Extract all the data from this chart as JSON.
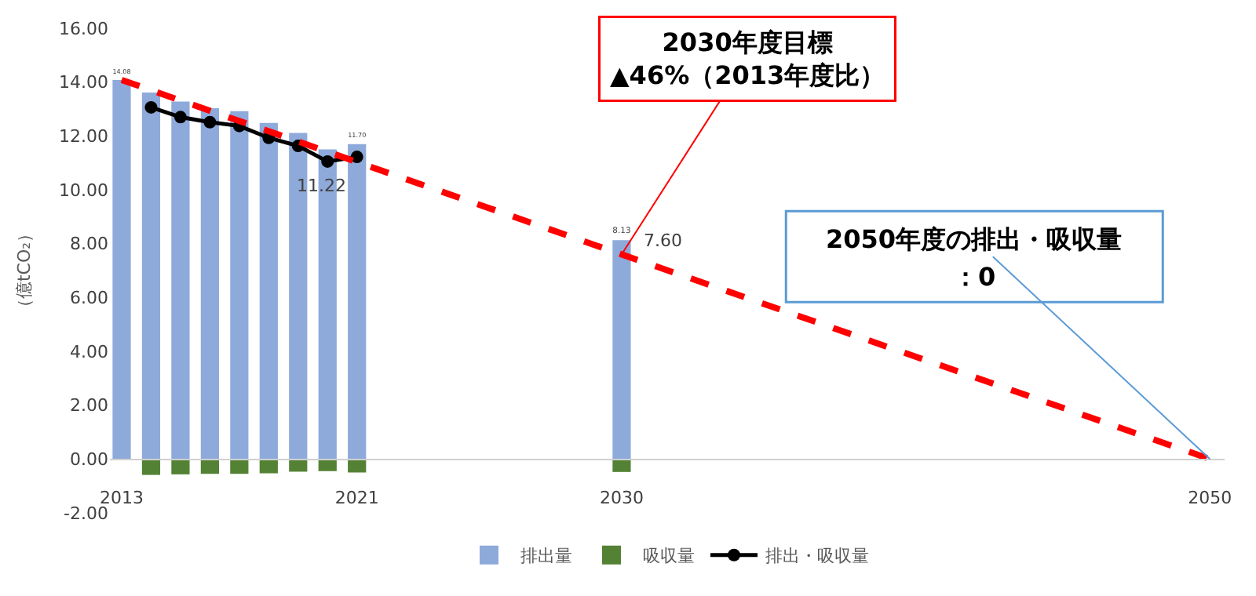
{
  "chart_data": {
    "type": "bar",
    "ylabel": "（億tCO₂）",
    "xlim": [
      2012.6,
      2050.5
    ],
    "xticks": [
      2013,
      2021,
      2030,
      2050
    ],
    "ylim": [
      -2,
      16
    ],
    "yticks": [
      {
        "value": -2,
        "label": "-2.00"
      },
      {
        "value": 0,
        "label": "0.00"
      },
      {
        "value": 2,
        "label": "2.00"
      },
      {
        "value": 4,
        "label": "4.00"
      },
      {
        "value": 6,
        "label": "6.00"
      },
      {
        "value": 8,
        "label": "8.00"
      },
      {
        "value": 10,
        "label": "10.00"
      },
      {
        "value": 12,
        "label": "12.00"
      },
      {
        "value": 14,
        "label": "14.00"
      },
      {
        "value": 16,
        "label": "16.00"
      }
    ],
    "legend": "bottom",
    "series": [
      {
        "name": "排出量",
        "color": "#8eaadb",
        "x": [
          2013,
          2014,
          2015,
          2016,
          2017,
          2018,
          2019,
          2020,
          2021,
          2030
        ],
        "values": [
          14.08,
          13.61,
          13.28,
          13.03,
          12.92,
          12.48,
          12.11,
          11.5,
          11.7,
          8.13
        ],
        "value_labels": [
          "14.08",
          null,
          null,
          null,
          null,
          null,
          null,
          null,
          "11.70",
          "8.13"
        ]
      },
      {
        "name": "吸収量",
        "color": "#548235",
        "x": [
          2014,
          2015,
          2016,
          2017,
          2018,
          2019,
          2020,
          2021,
          2030
        ],
        "values": [
          -0.59,
          -0.57,
          -0.55,
          -0.55,
          -0.53,
          -0.47,
          -0.45,
          -0.5,
          -0.48
        ]
      },
      {
        "name": "排出・吸収量",
        "type": "line",
        "color": "#000000",
        "marker": "circle",
        "line_style": "solid",
        "x": [
          2014,
          2015,
          2016,
          2017,
          2018,
          2019,
          2020,
          2021
        ],
        "values": [
          13.06,
          12.7,
          12.51,
          12.37,
          11.93,
          11.63,
          11.05,
          11.22
        ],
        "value_labels": [
          null,
          null,
          null,
          null,
          null,
          null,
          null,
          "11.22"
        ]
      },
      {
        "type": "line",
        "color": "#ff0000",
        "marker": "none",
        "line_style": "dashed",
        "x": [
          2013,
          2030,
          2050
        ],
        "values": [
          14.08,
          7.6,
          0
        ],
        "value_labels": [
          null,
          "7.60",
          null
        ]
      }
    ],
    "annotations": [
      {
        "text": "2030年度目標\n▲46%（2013年度比）",
        "x": 2030,
        "y": 7.6
      },
      {
        "text": "2050年度の排出・吸収量",
        "x": 2050,
        "y": 0
      },
      "：0"
    ]
  }
}
